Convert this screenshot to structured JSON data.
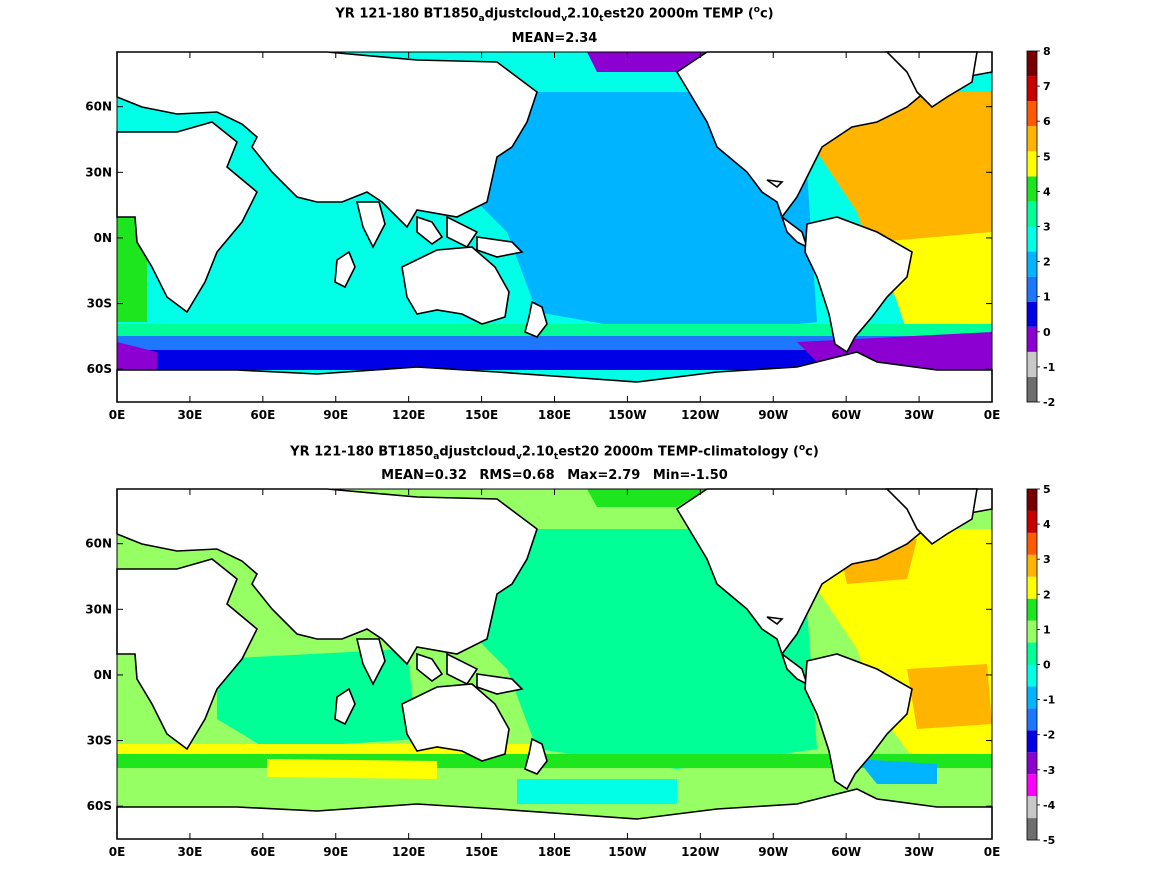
{
  "panels": [
    {
      "title_parts": {
        "a": "YR 121-180 BT1850",
        "sub1": "a",
        "b": "djustcloud",
        "sub2": "v",
        "c": "2.10",
        "sub3": "t",
        "d": "est20 2000m TEMP (",
        "sup": "o",
        "e": "c)"
      },
      "stats": [
        "MEAN=2.34"
      ],
      "colorbar": {
        "levels": [
          -2,
          -1,
          0,
          1,
          2,
          3,
          4,
          5,
          6,
          7,
          8
        ],
        "labels": [
          "-2",
          "-1",
          "0",
          "1",
          "2",
          "3",
          "4",
          "5",
          "6",
          "7",
          "8"
        ],
        "colors": [
          "#6e6e6e",
          "#c8c8c8",
          "#8c00d2",
          "#0000e6",
          "#1e78ff",
          "#00b4ff",
          "#00ffe6",
          "#00ff96",
          "#1ee61e",
          "#ffff00",
          "#ffb400",
          "#ff5a00",
          "#c80000",
          "#780000"
        ]
      }
    },
    {
      "title_parts": {
        "a": "YR 121-180 BT1850",
        "sub1": "a",
        "b": "djustcloud",
        "sub2": "v",
        "c": "2.10",
        "sub3": "t",
        "d": "est20 2000m TEMP-climatology (",
        "sup": "o",
        "e": "c)"
      },
      "stats": [
        "MEAN=0.32",
        "RMS=0.68",
        "Max=2.79",
        "Min=-1.50"
      ],
      "colorbar": {
        "levels": [
          -5,
          -4,
          -3,
          -2,
          -1,
          0,
          1,
          2,
          3,
          4,
          5
        ],
        "labels": [
          "-5",
          "-4",
          "-3",
          "-2",
          "-1",
          "0",
          "1",
          "2",
          "3",
          "4",
          "5"
        ],
        "colors": [
          "#6e6e6e",
          "#c8c8c8",
          "#ff00ff",
          "#8c00d2",
          "#0000e6",
          "#1e78ff",
          "#00b4ff",
          "#00ffe6",
          "#00ff96",
          "#96ff64",
          "#1ee61e",
          "#ffff00",
          "#ffb400",
          "#ff5a00",
          "#c80000",
          "#780000"
        ]
      }
    }
  ],
  "axes": {
    "x_ticks": [
      "0E",
      "30E",
      "60E",
      "90E",
      "120E",
      "150E",
      "180E",
      "150W",
      "120W",
      "90W",
      "60W",
      "30W",
      "0E"
    ],
    "y_ticks": [
      "60N",
      "30N",
      "0N",
      "30S",
      "60S"
    ]
  }
}
